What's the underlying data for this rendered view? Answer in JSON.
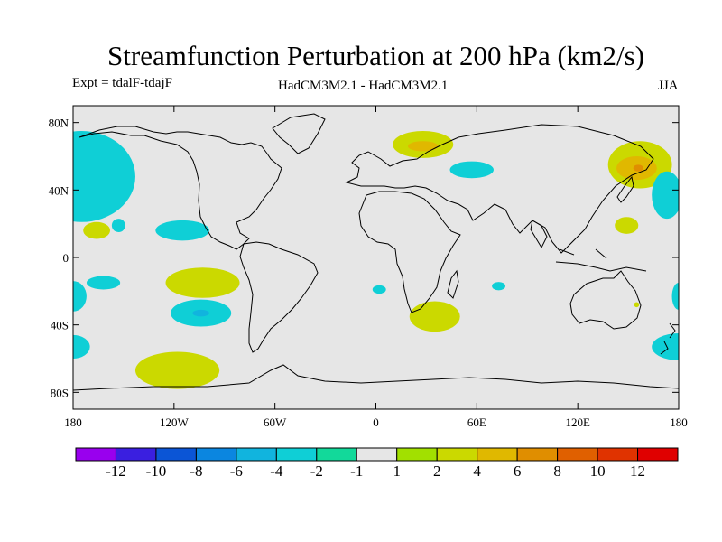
{
  "header": {
    "title": "Streamfunction Perturbation at 200 hPa (km2/s)",
    "expt": "Expt = tdalF-tdajF",
    "models": "HadCM3M2.1 - HadCM3M2.1",
    "season": "JJA"
  },
  "chart_data": {
    "type": "heatmap",
    "title": "Streamfunction Perturbation at 200 hPa (km2/s)",
    "projection": "cylindrical equidistant",
    "x_range_deg": [
      -180,
      180
    ],
    "y_range_deg": [
      -90,
      90
    ],
    "x_ticks": [
      {
        "value": -180,
        "label": "180"
      },
      {
        "value": -120,
        "label": "120W"
      },
      {
        "value": -60,
        "label": "60W"
      },
      {
        "value": 0,
        "label": "0"
      },
      {
        "value": 60,
        "label": "60E"
      },
      {
        "value": 120,
        "label": "120E"
      },
      {
        "value": 180,
        "label": "180"
      }
    ],
    "y_ticks": [
      {
        "value": 80,
        "label": "80N"
      },
      {
        "value": 40,
        "label": "40N"
      },
      {
        "value": 0,
        "label": "0"
      },
      {
        "value": -40,
        "label": "40S"
      },
      {
        "value": -80,
        "label": "80S"
      }
    ],
    "colorbar": {
      "levels": [
        "-12",
        "-10",
        "-8",
        "-6",
        "-4",
        "-2",
        "-1",
        "1",
        "2",
        "4",
        "6",
        "8",
        "10",
        "12"
      ],
      "colors": [
        "#9900ee",
        "#3a1fe0",
        "#0b55d6",
        "#0b86e0",
        "#11b4de",
        "#0fcfd6",
        "#12d99a",
        "#e6e6e6",
        "#a2e000",
        "#cbd900",
        "#e0b800",
        "#e08e00",
        "#e06000",
        "#e03300",
        "#e00000"
      ]
    },
    "background_color": "#e6e6e6",
    "anomaly_regions": [
      {
        "name": "north-pacific-east",
        "lon": -175,
        "lat": 48,
        "rx": 32,
        "ry": 27,
        "value": "-2"
      },
      {
        "name": "central-pacific-15n",
        "lon": -166,
        "lat": 16,
        "rx": 8,
        "ry": 5,
        "value": "2"
      },
      {
        "name": "hawaii",
        "lon": -153,
        "lat": 19,
        "rx": 4,
        "ry": 4,
        "value": "-2"
      },
      {
        "name": "east-pacific-15n",
        "lon": -115,
        "lat": 16,
        "rx": 16,
        "ry": 6,
        "value": "-2"
      },
      {
        "name": "south-pacific-15s",
        "lon": -162,
        "lat": -15,
        "rx": 10,
        "ry": 4,
        "value": "-2"
      },
      {
        "name": "south-pacific-15s-2",
        "lon": -103,
        "lat": -15,
        "rx": 22,
        "ry": 9,
        "value": "2"
      },
      {
        "name": "south-pacific-30s",
        "lon": -104,
        "lat": -33,
        "rx": 18,
        "ry": 8,
        "value": "-2"
      },
      {
        "name": "south-pacific-30s-core",
        "lon": -104,
        "lat": -33,
        "rx": 5,
        "ry": 2,
        "value": "-4"
      },
      {
        "name": "dateline-west-30s",
        "lon": -180,
        "lat": -23,
        "rx": 8,
        "ry": 9,
        "value": "-2"
      },
      {
        "name": "dateline-west-55s",
        "lon": -180,
        "lat": -53,
        "rx": 10,
        "ry": 7,
        "value": "-2"
      },
      {
        "name": "dateline-east-30s",
        "lon": 180,
        "lat": -23,
        "rx": 4,
        "ry": 8,
        "value": "-2"
      },
      {
        "name": "dateline-east-55s",
        "lon": 180,
        "lat": -53,
        "rx": 16,
        "ry": 8,
        "value": "-2"
      },
      {
        "name": "southern-ocean-65s",
        "lon": -118,
        "lat": -67,
        "rx": 25,
        "ry": 11,
        "value": "2"
      },
      {
        "name": "scandinavia",
        "lon": 28,
        "lat": 67,
        "rx": 18,
        "ry": 8,
        "value": "2"
      },
      {
        "name": "scandinavia-core",
        "lon": 28,
        "lat": 66,
        "rx": 9,
        "ry": 3,
        "value": "4"
      },
      {
        "name": "caspian",
        "lon": 57,
        "lat": 52,
        "rx": 13,
        "ry": 5,
        "value": "-2"
      },
      {
        "name": "south-atlantic-15s",
        "lon": 2,
        "lat": -19,
        "rx": 4,
        "ry": 2.5,
        "value": "-2"
      },
      {
        "name": "indian-ocean-15s",
        "lon": 73,
        "lat": -17,
        "rx": 4,
        "ry": 2.5,
        "value": "-2"
      },
      {
        "name": "southern-africa",
        "lon": 35,
        "lat": -35,
        "rx": 15,
        "ry": 9,
        "value": "2"
      },
      {
        "name": "east-siberia",
        "lon": 157,
        "lat": 55,
        "rx": 19,
        "ry": 14,
        "value": "2"
      },
      {
        "name": "east-siberia-core",
        "lon": 155,
        "lat": 53,
        "rx": 12,
        "ry": 7,
        "value": "4"
      },
      {
        "name": "east-siberia-core-2",
        "lon": 156,
        "lat": 53,
        "rx": 3,
        "ry": 2,
        "value": "6"
      },
      {
        "name": "northwest-pacific",
        "lon": 173,
        "lat": 37,
        "rx": 9,
        "ry": 14,
        "value": "-2"
      },
      {
        "name": "western-pacific-20n",
        "lon": 149,
        "lat": 19,
        "rx": 7,
        "ry": 5,
        "value": "2"
      },
      {
        "name": "australia-east",
        "lon": 155,
        "lat": -28,
        "rx": 1.5,
        "ry": 1.5,
        "value": "2"
      }
    ]
  }
}
